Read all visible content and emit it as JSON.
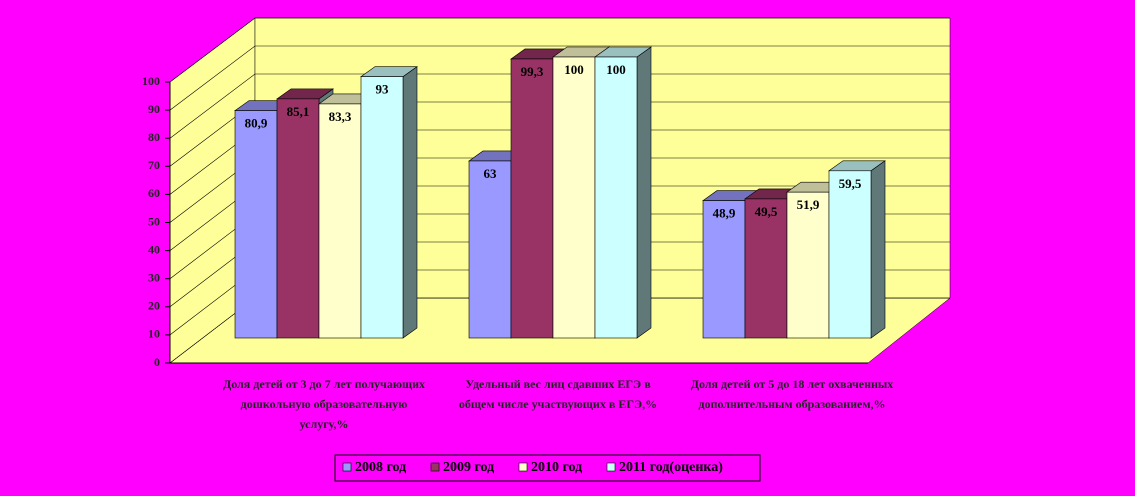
{
  "chart_data": {
    "type": "bar3d",
    "categories": [
      "Доля детей от 3 до 7 лет получающих дошкольную образовательную услугу,%",
      "Удельный вес лиц сдавших ЕГЭ в общем числе участвующих в ЕГЭ,%",
      "Доля детей от 5 до 18 лет охваченных дополнительным образованием,%"
    ],
    "series": [
      {
        "name": "2008 год",
        "color": "#9999ff",
        "values": [
          80.9,
          63,
          48.9
        ],
        "value_labels": [
          "80,9",
          "63",
          "48,9"
        ]
      },
      {
        "name": "2009 год",
        "color": "#993366",
        "values": [
          85.1,
          99.3,
          49.5
        ],
        "value_labels": [
          "85,1",
          "99,3",
          "49,5"
        ]
      },
      {
        "name": "2010 год",
        "color": "#ffffcc",
        "values": [
          83.3,
          100,
          51.9
        ],
        "value_labels": [
          "83,3",
          "100",
          "51,9"
        ]
      },
      {
        "name": "2011 год(оценка)",
        "color": "#ccffff",
        "values": [
          93,
          100,
          59.5
        ],
        "value_labels": [
          "93",
          "100",
          "59,5"
        ]
      }
    ],
    "ylim": [
      0,
      100
    ],
    "yticks": [
      0,
      10,
      20,
      30,
      40,
      50,
      60,
      70,
      80,
      90,
      100
    ],
    "grid": true
  }
}
